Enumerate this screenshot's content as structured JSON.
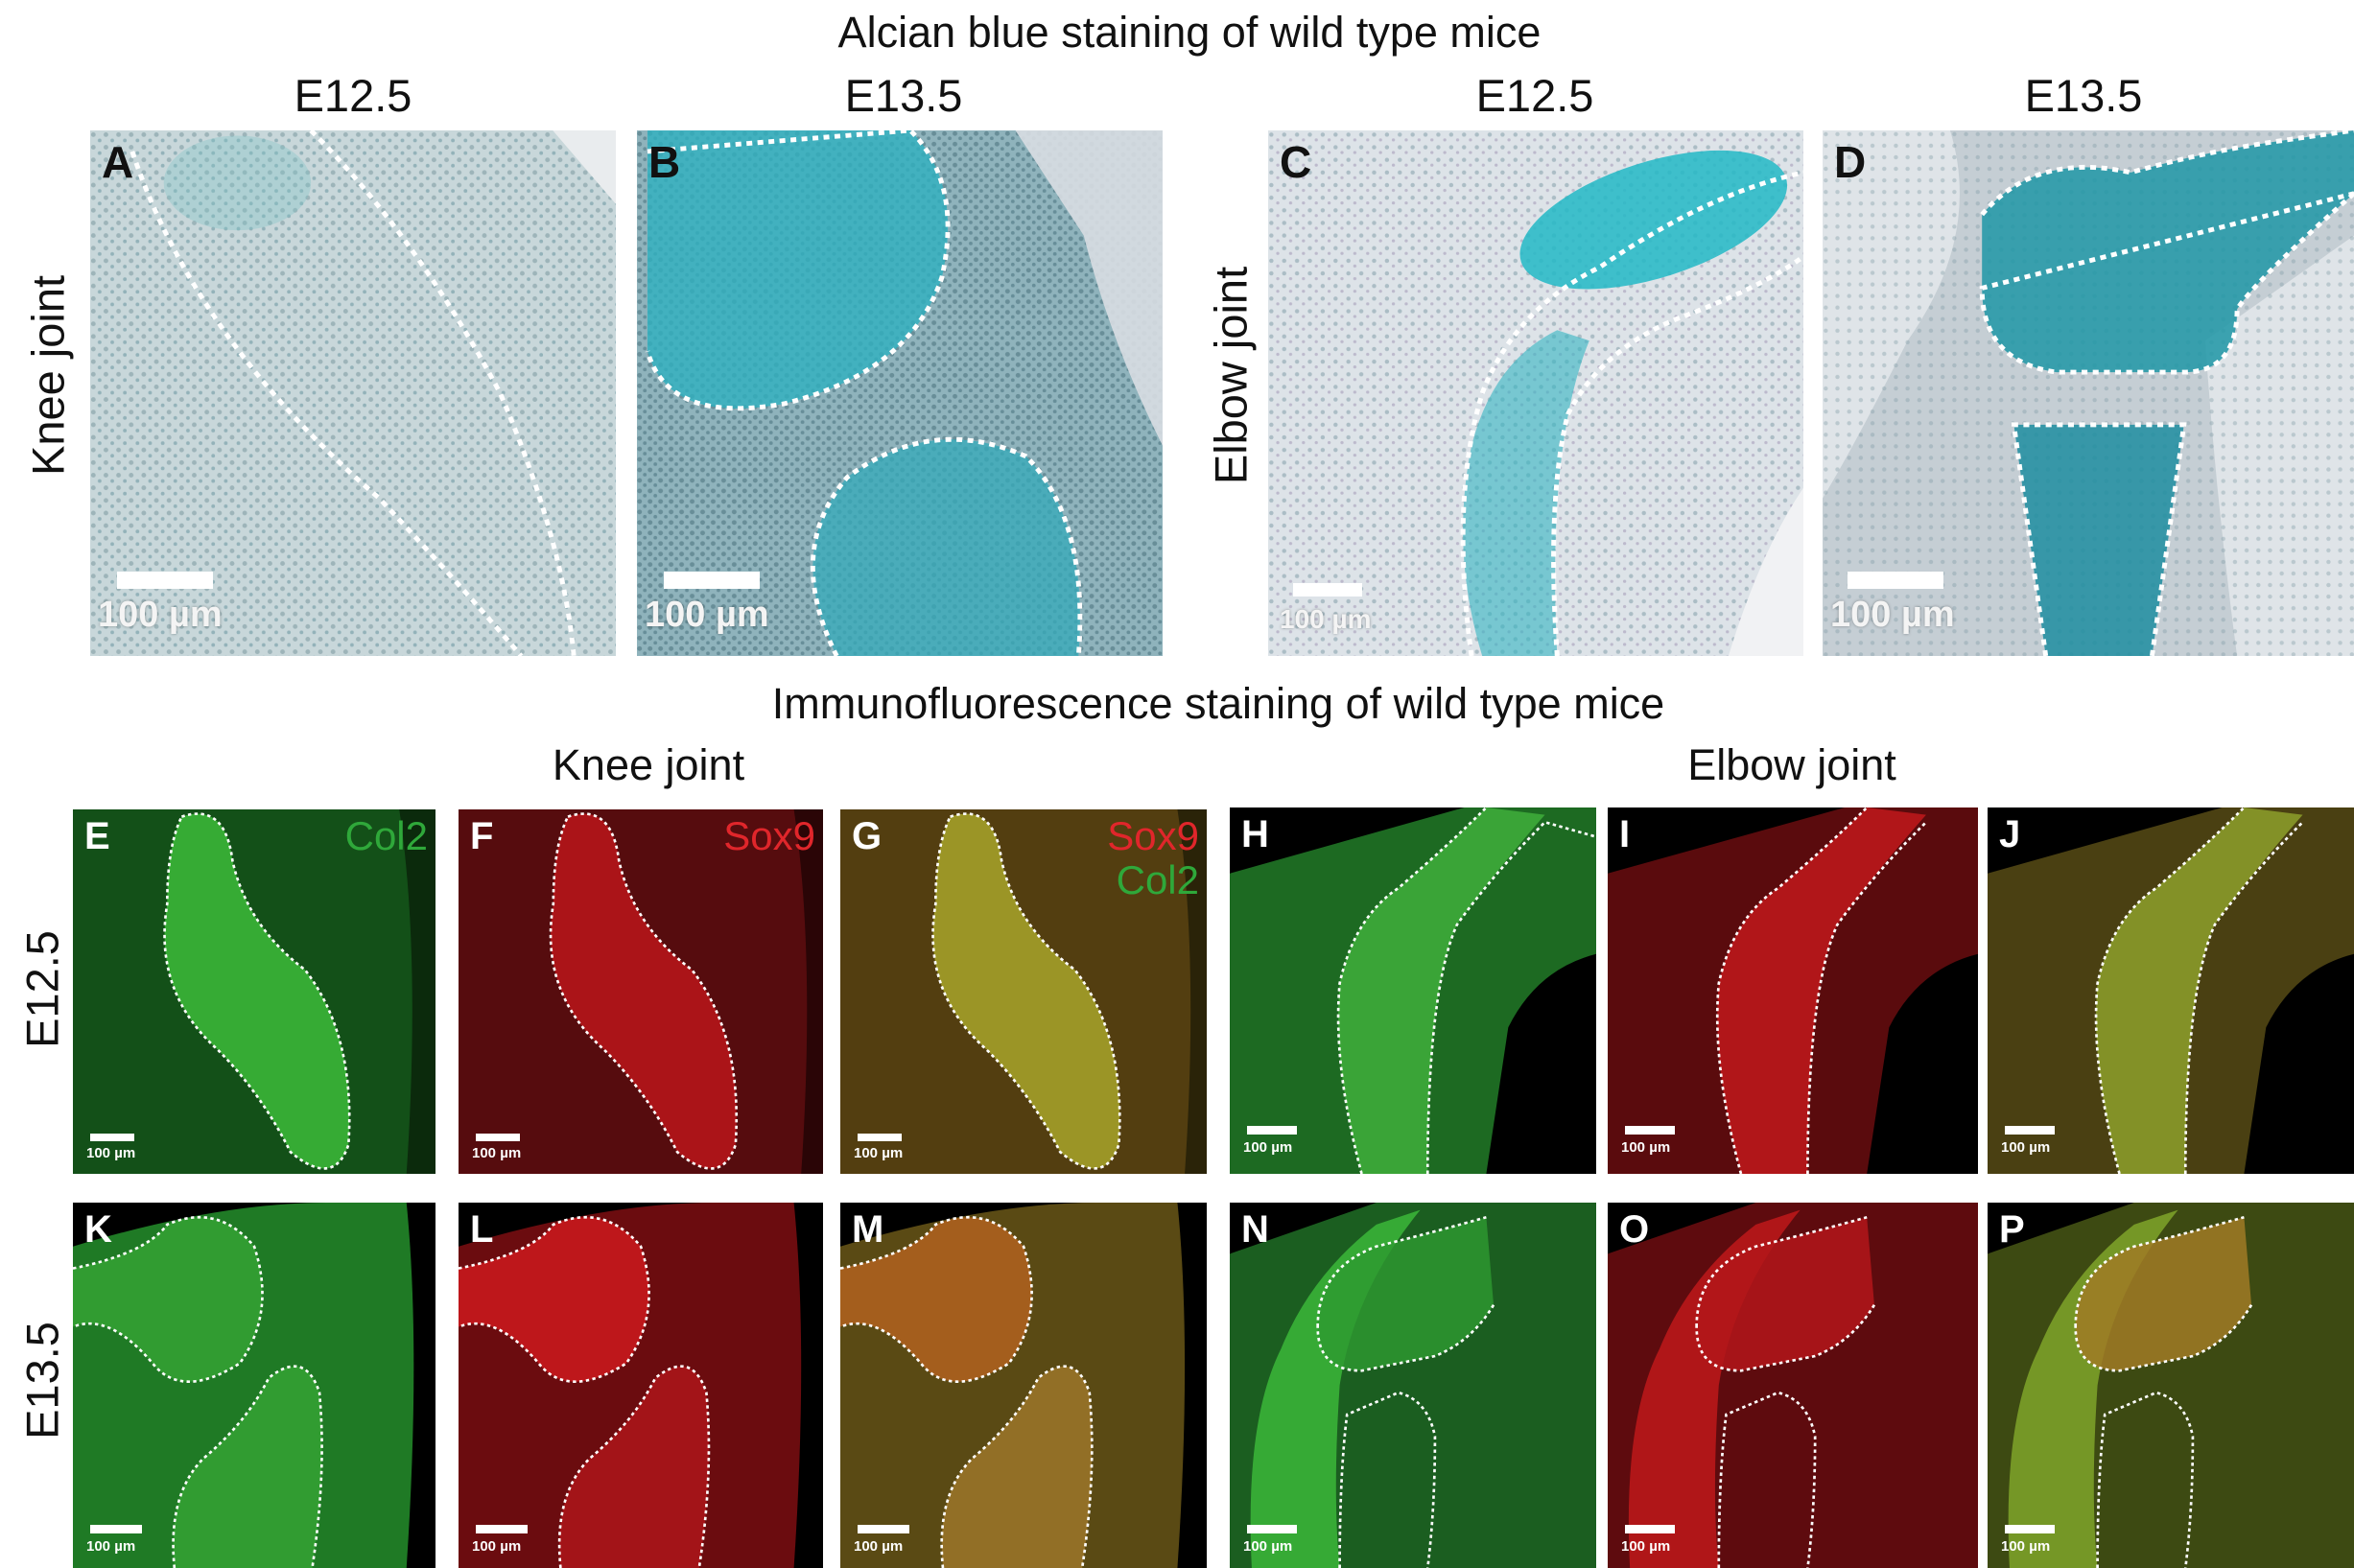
{
  "alcian": {
    "title": "Alcian blue staining of wild type mice",
    "columns": [
      "E12.5",
      "E13.5",
      "E12.5",
      "E13.5"
    ],
    "rows": [
      "Knee joint",
      "Elbow joint"
    ],
    "panels": [
      {
        "letter": "A",
        "scale": "100 µm"
      },
      {
        "letter": "B",
        "scale": "100 µm"
      },
      {
        "letter": "C",
        "scale": "100 µm"
      },
      {
        "letter": "D",
        "scale": "100 µm"
      }
    ]
  },
  "immuno": {
    "title": "Immunofluorescence staining of wild type mice",
    "groups": [
      "Knee joint",
      "Elbow joint"
    ],
    "rows": [
      "E12.5",
      "E13.5"
    ],
    "markers": {
      "col2": "Col2",
      "sox9": "Sox9"
    },
    "panels": [
      {
        "letter": "E",
        "scale": "100 µm"
      },
      {
        "letter": "F",
        "scale": "100 µm"
      },
      {
        "letter": "G",
        "scale": "100 µm"
      },
      {
        "letter": "H",
        "scale": "100 µm"
      },
      {
        "letter": "I",
        "scale": "100 µm"
      },
      {
        "letter": "J",
        "scale": "100 µm"
      },
      {
        "letter": "K",
        "scale": "100 µm"
      },
      {
        "letter": "L",
        "scale": "100 µm"
      },
      {
        "letter": "M",
        "scale": "100 µm"
      },
      {
        "letter": "N",
        "scale": "100 µm"
      },
      {
        "letter": "O",
        "scale": "100 µm"
      },
      {
        "letter": "P",
        "scale": "100 µm"
      }
    ]
  },
  "colors": {
    "alcian_tissue": "#b9cfd3",
    "alcian_cartilage": "#2fb3c2",
    "col2_green": "#2fa83a",
    "sox9_red": "#e0262b",
    "merge_orange": "#9a8a1f",
    "background_black": "#000000"
  }
}
